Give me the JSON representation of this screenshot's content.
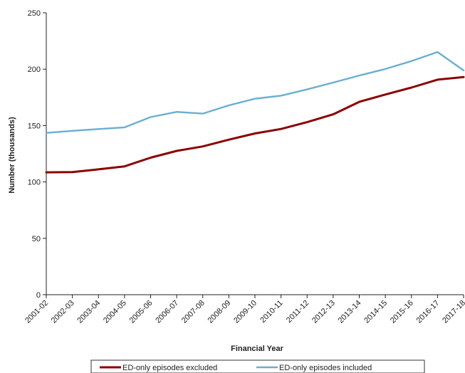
{
  "chart_data": {
    "type": "line",
    "xlabel": "Financial Year",
    "ylabel": "Number (thousands)",
    "ylim": [
      0,
      250
    ],
    "yticks": [
      0,
      50,
      100,
      150,
      200,
      250
    ],
    "grid": false,
    "legend_position": "bottom",
    "categories": [
      "2001-02",
      "2002-03",
      "2003-04",
      "2004-05",
      "2005-06",
      "2006-07",
      "2007-08",
      "2008-09",
      "2009-10",
      "2010-11",
      "2011-12",
      "2012-13",
      "2013-14",
      "2014-15",
      "2015-16",
      "2016-17",
      "2017-18"
    ],
    "series": [
      {
        "name": "ED-only episodes excluded",
        "color": "#8b0000",
        "values": [
          108.5,
          108.7,
          111.2,
          113.8,
          121.5,
          127.5,
          131.5,
          137.5,
          143.0,
          147.0,
          153.0,
          160.0,
          171.0,
          177.5,
          183.7,
          190.7,
          193.0
        ]
      },
      {
        "name": "ED-only episodes included",
        "color": "#6aaed0",
        "values": [
          143.5,
          145.3,
          146.9,
          148.4,
          157.5,
          162.1,
          160.6,
          167.9,
          173.8,
          176.5,
          182.1,
          188.1,
          194.4,
          200.2,
          207.2,
          215.2,
          198.9
        ]
      }
    ]
  }
}
